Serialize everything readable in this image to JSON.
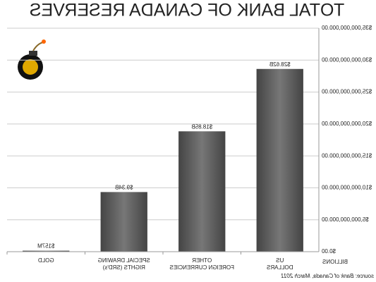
{
  "chart_data": {
    "type": "bar",
    "title": "TOTAL BANK OF CANADA RESERVES",
    "y_label": "BILLIONS",
    "source": "source: Bank of Canada, March 2011",
    "categories": [
      "US\nDOLLARS",
      "OTHER\nFOREIGN CURRENCIES",
      "SPECIAL DRAWING\nRIGHTS (SRD's)",
      "GOLD"
    ],
    "values": [
      28620000000,
      18850000000,
      9340000000,
      157000000
    ],
    "value_labels": [
      "$28.62B",
      "$18.85B",
      "$9.34B",
      "$157M"
    ],
    "color": "#595959",
    "ylim": [
      0,
      35000000000
    ],
    "yticks": [
      {
        "value": 0,
        "label": "$0.00"
      },
      {
        "value": 5000000000,
        "label": "$5,000,000,000.00"
      },
      {
        "value": 10000000000,
        "label": "$10,000,000,000.00"
      },
      {
        "value": 15000000000,
        "label": "$15,000,000,000.00"
      },
      {
        "value": 20000000000,
        "label": "$20,000,000,000.00"
      },
      {
        "value": 25000000000,
        "label": "$25,000,000,000.00"
      },
      {
        "value": 30000000000,
        "label": "$30,000,000,000.00"
      },
      {
        "value": 35000000000,
        "label": "$35,000,000,000.00"
      }
    ],
    "grid": true
  }
}
